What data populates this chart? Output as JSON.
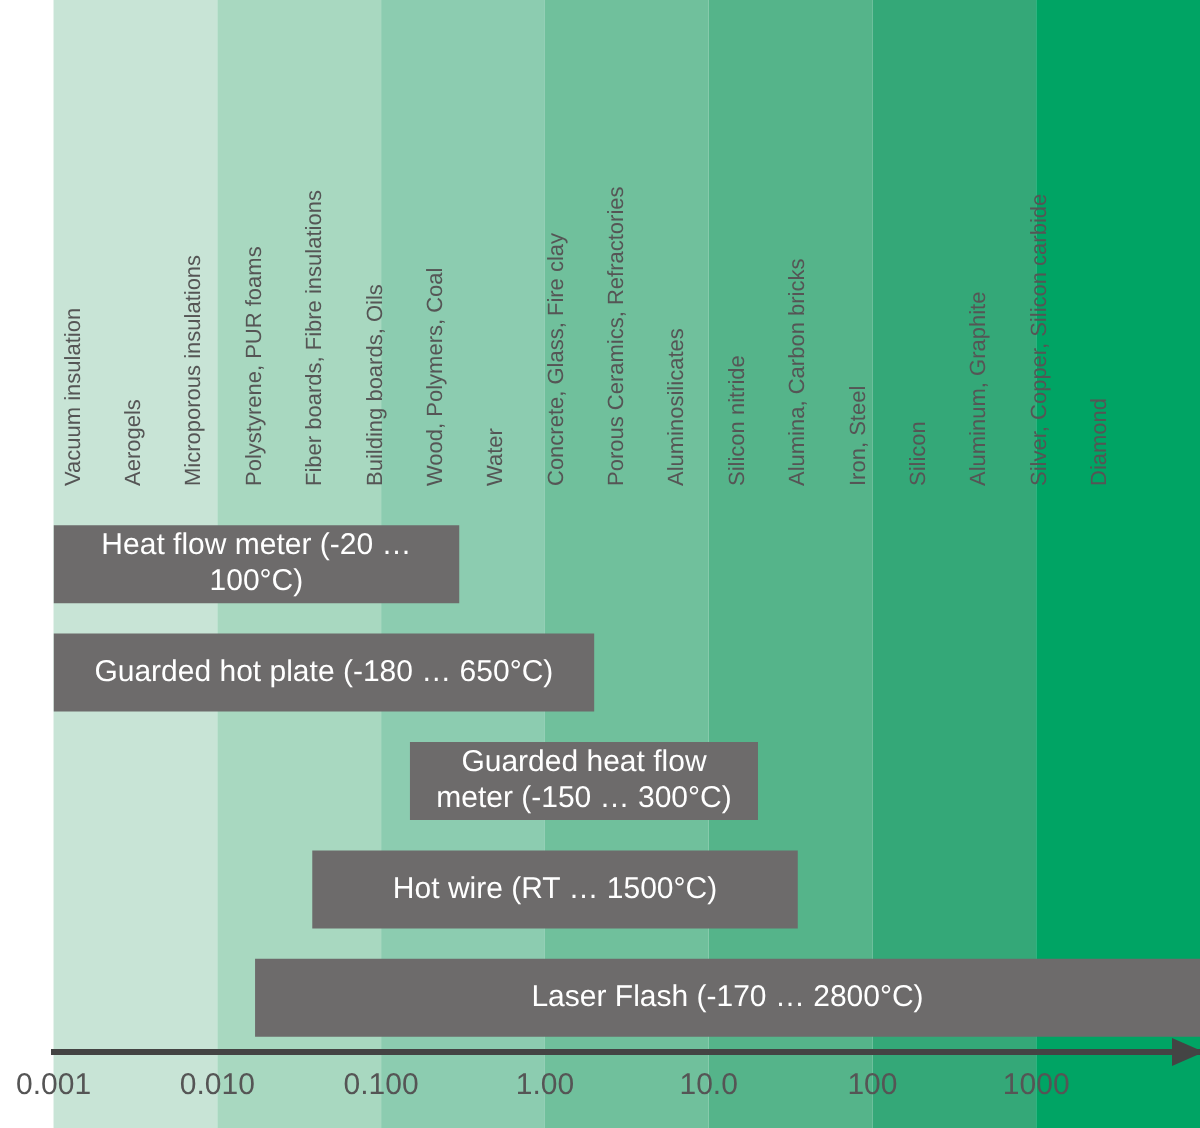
{
  "chart_data": {
    "type": "bar",
    "orientation": "horizontal",
    "log": "x",
    "categories": [
      "Heat flow meter (-20 … 100°C)",
      "Guarded hot plate (-180 … 650°C)",
      "Guarded heat flow meter (-150 … 300°C)",
      "Hot wire (RT … 1500°C)",
      "Laser Flash (-170 … 2800°C)"
    ],
    "base": [
      0.001,
      0.001,
      0.15,
      0.038,
      0.017
    ],
    "values": [
      0.299,
      1.999,
      19.85,
      34.96,
      9999.98
    ],
    "color": "#6d6b6b",
    "xlim": [
      0.001,
      10000
    ],
    "xticks": [
      0.001,
      {
        "value": 0.01,
        "label": "0.010"
      },
      {
        "value": 0.1,
        "label": "0.100"
      },
      {
        "value": 1,
        "label": "1.00"
      },
      {
        "value": 10,
        "label": "10.0"
      },
      100,
      1000
    ],
    "tick_labels": "x",
    "grid": false,
    "legend": false,
    "bands": [
      {
        "axis": "x",
        "from": 0.001,
        "to": 0.01,
        "color": "#c8e4d6"
      },
      {
        "axis": "x",
        "from": 0.01,
        "to": 0.1,
        "color": "#a8d8c0"
      },
      {
        "axis": "x",
        "from": 0.1,
        "to": 1,
        "color": "#8cccb0"
      },
      {
        "axis": "x",
        "from": 1,
        "to": 10,
        "color": "#70c09c"
      },
      {
        "axis": "x",
        "from": 10,
        "to": 100,
        "color": "#55b48a"
      },
      {
        "axis": "x",
        "from": 100,
        "to": 1000,
        "color": "#34a878"
      },
      {
        "axis": "x",
        "from": 1000,
        "to": 10000,
        "color": "#00a464"
      }
    ],
    "annotations": [
      "Vacuum insulation",
      "Aerogels",
      "Microporous insulations",
      "Polystyrene, PUR foams",
      "Fiber boards, Fibre insulations",
      "Building boards, Oils",
      "Wood, Polymers, Coal",
      "Water",
      "Concrete, Glass, Fire clay",
      "Porous Ceramics, Refractories",
      "Aluminosilicates",
      "Silicon nitride",
      "Alumina, Carbon bricks",
      "Iron, Steel",
      "Silicon",
      "Aluminum, Graphite",
      "Silver, Copper, Silicon carbide",
      "Diamond"
    ]
  }
}
